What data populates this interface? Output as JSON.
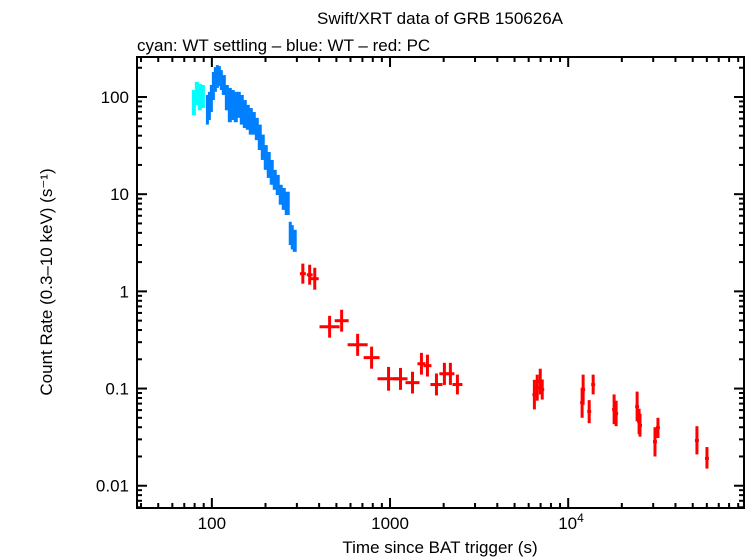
{
  "chart_data": {
    "type": "scatter",
    "title": "Swift/XRT data of GRB 150626A",
    "subtitle": "cyan: WT settling – blue: WT – red: PC",
    "xlabel": "Time since BAT trigger (s)",
    "ylabel": "Count Rate (0.3–10 keV) (s⁻¹)",
    "xscale": "log",
    "yscale": "log",
    "xlim": [
      38,
      97000
    ],
    "ylim": [
      0.0059,
      258
    ],
    "grid": false,
    "x_ticks": [
      {
        "value": 100,
        "label": "100"
      },
      {
        "value": 1000,
        "label": "1000"
      },
      {
        "value": 10000,
        "label": "10",
        "sup": "4"
      }
    ],
    "y_ticks": [
      {
        "value": 0.01,
        "label": "0.01"
      },
      {
        "value": 0.1,
        "label": "0.1"
      },
      {
        "value": 1,
        "label": "1"
      },
      {
        "value": 10,
        "label": "10"
      },
      {
        "value": 100,
        "label": "100"
      }
    ],
    "colors": {
      "wt_settling": "#00ffff",
      "wt": "#0080ff",
      "pc": "#ff0000"
    },
    "series": [
      {
        "mode": "WT settling",
        "color": "#00ffff",
        "columns": [
          "time",
          "rate_low",
          "rate_high"
        ],
        "points": [
          [
            78.3,
            65,
            118
          ],
          [
            81.3,
            83,
            143
          ],
          [
            84.5,
            73,
            136
          ],
          [
            87.9,
            77,
            133
          ]
        ]
      },
      {
        "mode": "WT",
        "color": "#0080ff",
        "columns": [
          "time",
          "rate_low",
          "rate_high"
        ],
        "points": [
          [
            93.8,
            52,
            105
          ],
          [
            96.2,
            58,
            113
          ],
          [
            98.7,
            70,
            133
          ],
          [
            101.3,
            93,
            181
          ],
          [
            103.9,
            113,
            203
          ],
          [
            106.7,
            124,
            213
          ],
          [
            109.4,
            130,
            208
          ],
          [
            112.3,
            118,
            189
          ],
          [
            115.2,
            105,
            168
          ],
          [
            119.8,
            73,
            133
          ],
          [
            124.5,
            55,
            124
          ],
          [
            129.4,
            58,
            118
          ],
          [
            134.5,
            55,
            113
          ],
          [
            139.8,
            61,
            113
          ],
          [
            145.3,
            52,
            105
          ],
          [
            151.1,
            48,
            93
          ],
          [
            157.0,
            46,
            83
          ],
          [
            163.2,
            41,
            77
          ],
          [
            169.7,
            41,
            70
          ],
          [
            176.4,
            36,
            61
          ],
          [
            183.4,
            28.5,
            52
          ],
          [
            190.6,
            22.5,
            41
          ],
          [
            198.1,
            17.8,
            32
          ],
          [
            205.9,
            14.7,
            27.2
          ],
          [
            214.0,
            12.5,
            22.5
          ],
          [
            222.5,
            11.1,
            17.8
          ],
          [
            231.3,
            9.8,
            15.8
          ],
          [
            240.4,
            7.8,
            12.5
          ],
          [
            249.9,
            6.9,
            11.6
          ],
          [
            259.8,
            6.1,
            10.6
          ],
          [
            273.6,
            3.0,
            5.2
          ],
          [
            280.8,
            2.7,
            4.8
          ],
          [
            288.0,
            2.55,
            4.3
          ]
        ]
      },
      {
        "mode": "PC",
        "color": "#ff0000",
        "columns": [
          "time",
          "time_low",
          "time_high",
          "rate",
          "rate_low",
          "rate_high"
        ],
        "points": [
          [
            324,
            312,
            337,
            1.52,
            1.2,
            1.93
          ],
          [
            354,
            341,
            368,
            1.48,
            1.17,
            1.88
          ],
          [
            378,
            359,
            398,
            1.35,
            1.04,
            1.75
          ],
          [
            458,
            402,
            521,
            0.433,
            0.334,
            0.56
          ],
          [
            535,
            489,
            586,
            0.499,
            0.385,
            0.647
          ],
          [
            658,
            578,
            749,
            0.282,
            0.217,
            0.366
          ],
          [
            788,
            711,
            874,
            0.208,
            0.16,
            0.27
          ],
          [
            981,
            851,
            1131,
            0.126,
            0.095,
            0.167
          ],
          [
            1145,
            1046,
            1254,
            0.126,
            0.097,
            0.163
          ],
          [
            1337,
            1221,
            1464,
            0.115,
            0.089,
            0.149
          ],
          [
            1501,
            1425,
            1580,
            0.18,
            0.139,
            0.233
          ],
          [
            1622,
            1540,
            1708,
            0.172,
            0.133,
            0.223
          ],
          [
            1822,
            1685,
            1970,
            0.11,
            0.085,
            0.143
          ],
          [
            2019,
            1892,
            2154,
            0.142,
            0.109,
            0.184
          ],
          [
            2182,
            2072,
            2298,
            0.142,
            0.109,
            0.184
          ],
          [
            2389,
            2239,
            2549,
            0.11,
            0.087,
            0.139
          ],
          [
            6460,
            6296,
            6628,
            0.0865,
            0.061,
            0.123
          ],
          [
            6700,
            6530,
            6874,
            0.102,
            0.075,
            0.139
          ],
          [
            6970,
            6793,
            7151,
            0.118,
            0.087,
            0.16
          ],
          [
            7150,
            6969,
            7336,
            0.0975,
            0.077,
            0.124
          ],
          [
            11970,
            11667,
            12281,
            0.0716,
            0.05,
            0.102
          ],
          [
            12130,
            11823,
            12445,
            0.0975,
            0.068,
            0.139
          ],
          [
            13120,
            12788,
            13461,
            0.058,
            0.044,
            0.076
          ],
          [
            13810,
            13460,
            14169,
            0.11,
            0.087,
            0.139
          ],
          [
            18100,
            17641,
            18571,
            0.0607,
            0.043,
            0.087
          ],
          [
            18580,
            18109,
            19063,
            0.0552,
            0.041,
            0.075
          ],
          [
            24370,
            23752,
            25003,
            0.0652,
            0.046,
            0.093
          ],
          [
            25000,
            24366,
            25650,
            0.0457,
            0.034,
            0.062
          ],
          [
            25300,
            24659,
            25958,
            0.0416,
            0.032,
            0.055
          ],
          [
            30700,
            29922,
            31498,
            0.0284,
            0.02,
            0.04
          ],
          [
            31900,
            31092,
            32729,
            0.0396,
            0.031,
            0.05
          ],
          [
            52800,
            51462,
            54173,
            0.0292,
            0.021,
            0.041
          ],
          [
            60100,
            58577,
            61663,
            0.0191,
            0.015,
            0.025
          ]
        ]
      }
    ]
  }
}
